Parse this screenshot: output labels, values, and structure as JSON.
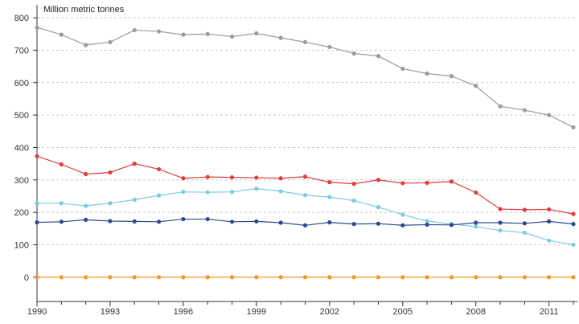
{
  "chart_data": {
    "type": "line",
    "title": "",
    "ylabel": "Million metric tonnes",
    "xlabel": "",
    "x": [
      1990,
      1991,
      1992,
      1993,
      1994,
      1995,
      1996,
      1997,
      1998,
      1999,
      2000,
      2001,
      2002,
      2003,
      2004,
      2005,
      2006,
      2007,
      2008,
      2009,
      2010,
      2011,
      2012
    ],
    "x_ticks": [
      1990,
      1993,
      1996,
      1999,
      2002,
      2005,
      2008,
      2011
    ],
    "y_ticks": [
      0,
      100,
      200,
      300,
      400,
      500,
      600,
      700,
      800
    ],
    "xlim": [
      1990,
      2012
    ],
    "ylim": [
      -75,
      840
    ],
    "grid": "horizontal dashed",
    "series": [
      {
        "color": "#9b9b9b",
        "values": [
          770,
          748,
          716,
          725,
          762,
          758,
          748,
          750,
          742,
          752,
          738,
          725,
          710,
          690,
          682,
          643,
          628,
          620,
          590,
          527,
          515,
          500,
          462
        ]
      },
      {
        "color": "#e03c3c",
        "values": [
          373,
          348,
          318,
          323,
          350,
          333,
          305,
          309,
          308,
          307,
          305,
          310,
          293,
          288,
          300,
          290,
          291,
          295,
          261,
          210,
          208,
          209,
          195
        ]
      },
      {
        "color": "#7ccbe2",
        "values": [
          228,
          228,
          220,
          228,
          239,
          252,
          263,
          262,
          263,
          273,
          265,
          253,
          247,
          236,
          216,
          193,
          173,
          164,
          156,
          144,
          137,
          113,
          100
        ]
      },
      {
        "color": "#2e4a8b",
        "values": [
          169,
          171,
          177,
          173,
          172,
          171,
          179,
          179,
          171,
          172,
          168,
          160,
          169,
          164,
          165,
          160,
          162,
          161,
          168,
          168,
          166,
          172,
          164
        ]
      },
      {
        "color": "#f0962d",
        "values": [
          0,
          0,
          0,
          0,
          0,
          0,
          0,
          0,
          0,
          0,
          0,
          0,
          0,
          0,
          0,
          0,
          0,
          0,
          0,
          0,
          0,
          0,
          0
        ]
      }
    ]
  }
}
